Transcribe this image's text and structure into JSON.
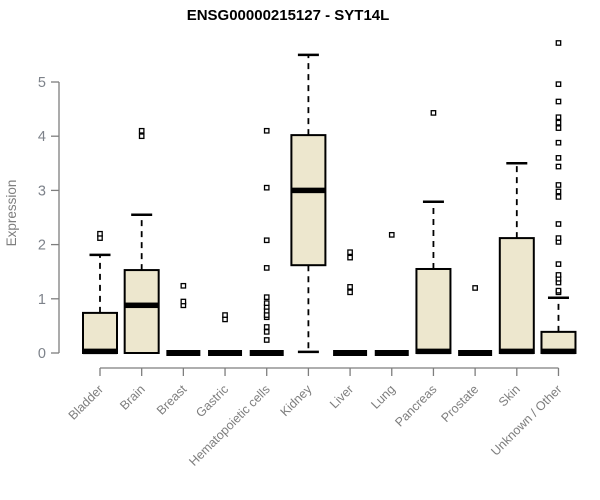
{
  "chart_data": {
    "type": "boxplot",
    "title": "ENSG00000215127 - SYT14L",
    "ylabel": "Expression",
    "xlabel": "",
    "yticks": [
      0,
      1,
      2,
      3,
      4,
      5
    ],
    "ylim": [
      -0.28,
      5.85
    ],
    "grid": false,
    "legend": "none",
    "colors": {
      "box_fill": "#EDE7CE",
      "box_stroke": "#000000",
      "axis": "#7e7e7e",
      "tick_text": "#7d828a",
      "title_text": "#000000"
    },
    "categories": [
      "Bladder",
      "Brain",
      "Breast",
      "Gastric",
      "Hematopoietic cells",
      "Kidney",
      "Liver",
      "Lung",
      "Pancreas",
      "Prostate",
      "Skin",
      "Unknown / Other"
    ],
    "boxes": [
      {
        "category": "Bladder",
        "whisker_low": 0,
        "q1": 0,
        "median": 0.03,
        "q3": 0.74,
        "whisker_high": 1.81,
        "outliers": [
          2.12,
          2.2
        ]
      },
      {
        "category": "Brain",
        "whisker_low": 0,
        "q1": 0,
        "median": 0.88,
        "q3": 1.53,
        "whisker_high": 2.55,
        "outliers": [
          4.0,
          4.1
        ]
      },
      {
        "category": "Breast",
        "whisker_low": 0,
        "q1": 0,
        "median": 0,
        "q3": 0,
        "whisker_high": 0,
        "outliers": [
          0.88,
          0.95,
          1.24
        ]
      },
      {
        "category": "Gastric",
        "whisker_low": 0,
        "q1": 0,
        "median": 0,
        "q3": 0,
        "whisker_high": 0,
        "outliers": [
          0.62,
          0.7
        ]
      },
      {
        "category": "Hematopoietic cells",
        "whisker_low": 0,
        "q1": 0,
        "median": 0,
        "q3": 0,
        "whisker_high": 0,
        "outliers": [
          0.24,
          0.39,
          0.48,
          0.66,
          0.7,
          0.78,
          0.85,
          0.92,
          1.03,
          1.57,
          2.08,
          3.05,
          4.1
        ]
      },
      {
        "category": "Kidney",
        "whisker_low": 0.02,
        "q1": 1.62,
        "median": 3.0,
        "q3": 4.02,
        "whisker_high": 5.5,
        "outliers": []
      },
      {
        "category": "Liver",
        "whisker_low": 0,
        "q1": 0,
        "median": 0,
        "q3": 0,
        "whisker_high": 0,
        "outliers": [
          1.12,
          1.22,
          1.76,
          1.86
        ]
      },
      {
        "category": "Lung",
        "whisker_low": 0,
        "q1": 0,
        "median": 0,
        "q3": 0,
        "whisker_high": 0,
        "outliers": [
          2.18
        ]
      },
      {
        "category": "Pancreas",
        "whisker_low": 0,
        "q1": 0,
        "median": 0.03,
        "q3": 1.55,
        "whisker_high": 2.79,
        "outliers": [
          4.43
        ]
      },
      {
        "category": "Prostate",
        "whisker_low": 0,
        "q1": 0,
        "median": 0,
        "q3": 0,
        "whisker_high": 0,
        "outliers": [
          1.2
        ]
      },
      {
        "category": "Skin",
        "whisker_low": 0,
        "q1": 0,
        "median": 0.03,
        "q3": 2.12,
        "whisker_high": 3.5,
        "outliers": []
      },
      {
        "category": "Unknown / Other",
        "whisker_low": 0,
        "q1": 0,
        "median": 0.03,
        "q3": 0.39,
        "whisker_high": 1.02,
        "outliers": [
          1.12,
          1.15,
          1.3,
          1.37,
          1.44,
          1.64,
          2.05,
          2.12,
          2.38,
          2.88,
          2.98,
          3.1,
          3.44,
          3.6,
          3.88,
          4.15,
          4.25,
          4.35,
          4.64,
          4.96,
          5.72
        ]
      }
    ]
  }
}
